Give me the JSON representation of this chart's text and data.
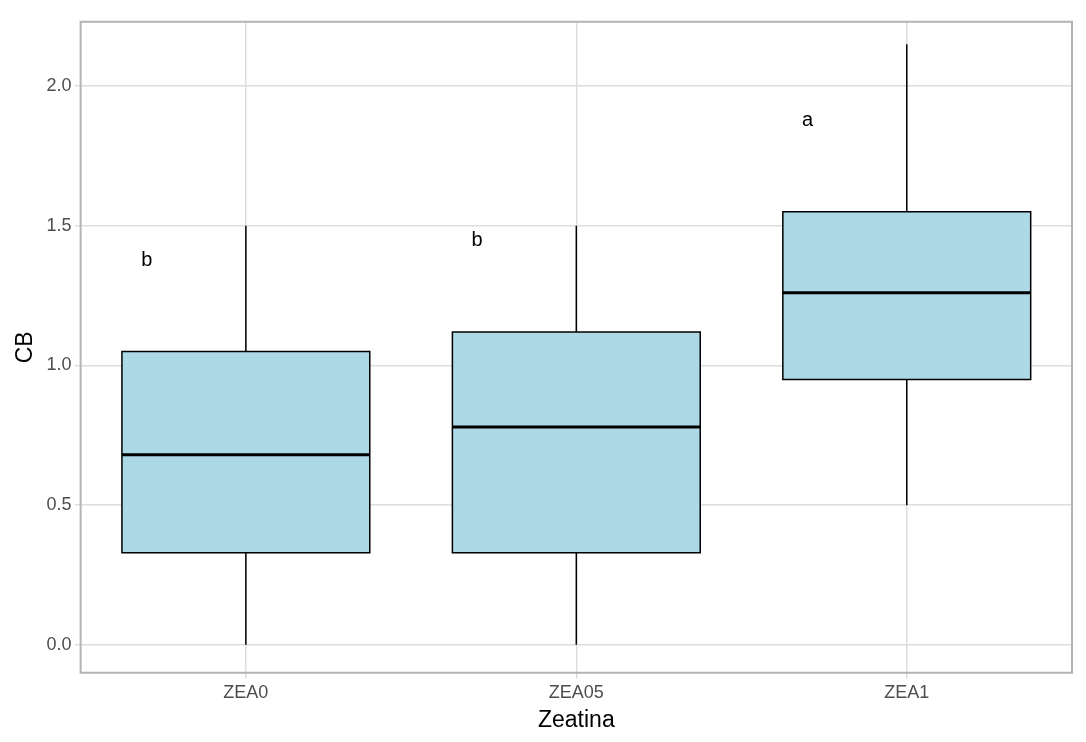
{
  "chart_data": {
    "type": "box",
    "xlabel": "Zeatina",
    "ylabel": "CB",
    "categories": [
      "ZEA0",
      "ZEA05",
      "ZEA1"
    ],
    "boxes": [
      {
        "low": 0,
        "q1": 0.33,
        "median": 0.68,
        "q3": 1.05,
        "high": 1.5
      },
      {
        "low": 0,
        "q1": 0.33,
        "median": 0.78,
        "q3": 1.12,
        "high": 1.5
      },
      {
        "low": 0.5,
        "q1": 0.95,
        "median": 1.26,
        "q3": 1.55,
        "high": 2.15
      }
    ],
    "color": "#add8e6",
    "ylim": [
      -0.1,
      2.23
    ],
    "yticks": [
      {
        "value": 0,
        "label": "0.0"
      },
      {
        "value": 0.5,
        "label": "0.5"
      },
      {
        "value": 1,
        "label": "1.0"
      },
      {
        "value": 1.5,
        "label": "1.5"
      },
      {
        "value": 2,
        "label": "2.0"
      }
    ],
    "grid": true,
    "annotations": [
      "b",
      "b",
      "a"
    ]
  }
}
